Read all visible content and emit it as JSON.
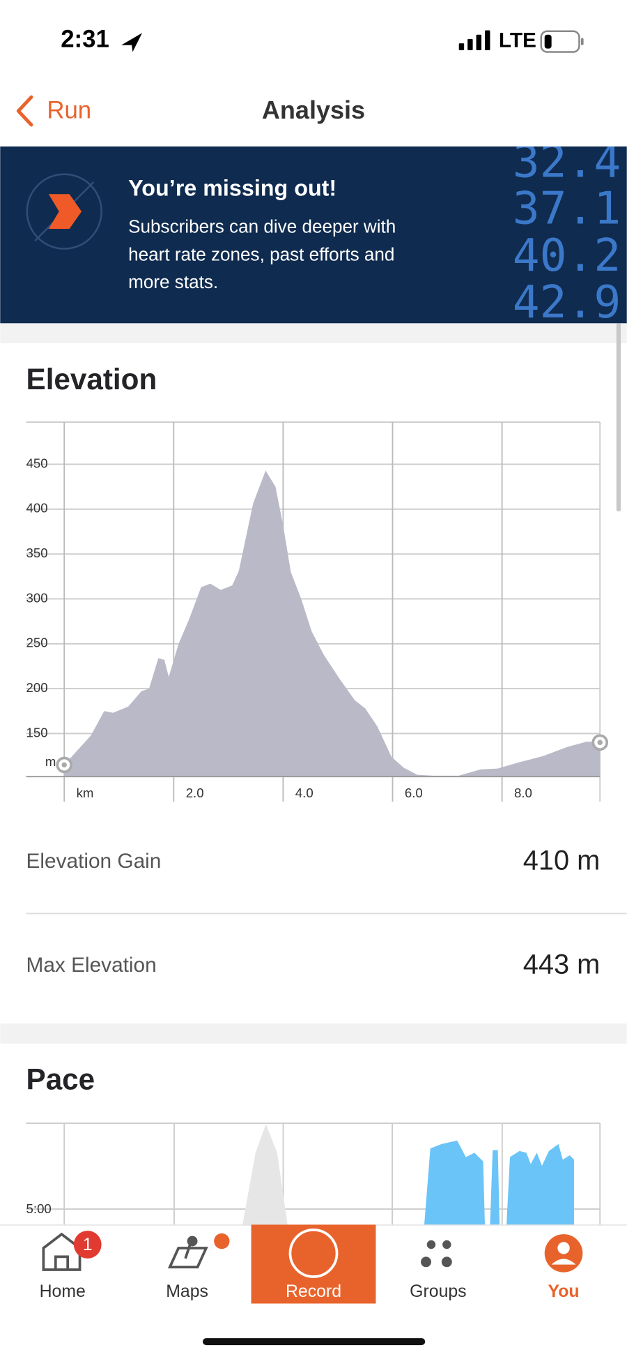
{
  "status_bar": {
    "time": "2:31",
    "network": "LTE"
  },
  "nav": {
    "back": "Run",
    "title": "Analysis"
  },
  "banner": {
    "title": "You’re missing out!",
    "lines": [
      "Subscribers can dive deeper with",
      "heart rate zones, past efforts and",
      "more stats."
    ],
    "numbers": [
      "32.4",
      "37.1",
      "40.2",
      "42.9"
    ]
  },
  "elevation": {
    "title": "Elevation",
    "chart": {
      "type": "area",
      "color": "#b9b9c7",
      "x": [
        0,
        0.49,
        0.73,
        0.89,
        1.17,
        1.41,
        1.55,
        1.72,
        1.83,
        1.91,
        2.09,
        2.28,
        2.5,
        2.67,
        2.86,
        3.07,
        3.19,
        3.45,
        3.68,
        3.86,
        4.0,
        4.14,
        4.33,
        4.52,
        4.74,
        5.03,
        5.31,
        5.5,
        5.72,
        5.98,
        6.2,
        6.45,
        6.74,
        7.21,
        7.61,
        7.92,
        8.32,
        8.76,
        9.19,
        9.55,
        9.79
      ],
      "values": [
        115,
        148,
        175,
        173,
        180,
        197,
        200,
        234,
        232,
        213,
        250,
        277,
        313,
        317,
        310,
        315,
        331,
        406,
        443,
        425,
        382,
        330,
        300,
        264,
        238,
        211,
        187,
        178,
        158,
        124,
        112,
        104,
        103,
        103,
        110,
        111,
        118,
        125,
        135,
        141,
        140
      ],
      "xlim": [
        0,
        9.79
      ],
      "ylim": [
        102,
        497
      ],
      "xticks": [
        {
          "value": 0,
          "label": "km"
        },
        {
          "value": 2,
          "label": "2.0"
        },
        {
          "value": 4,
          "label": "4.0"
        },
        {
          "value": 6,
          "label": "6.0"
        },
        {
          "value": 8,
          "label": "8.0"
        }
      ],
      "yticks": [
        150,
        200,
        250,
        300,
        350,
        400,
        450
      ],
      "y_unit": "m",
      "grid": true
    },
    "stats": [
      {
        "label": "Elevation Gain",
        "value": "410 m"
      },
      {
        "label": "Max Elevation",
        "value": "443 m"
      }
    ]
  },
  "pace": {
    "title": "Pace",
    "ytick": "5:00"
  },
  "tabs": [
    {
      "label": "Home",
      "badge": "1"
    },
    {
      "label": "Maps"
    },
    {
      "label": "Record"
    },
    {
      "label": "Groups"
    },
    {
      "label": "You"
    }
  ]
}
